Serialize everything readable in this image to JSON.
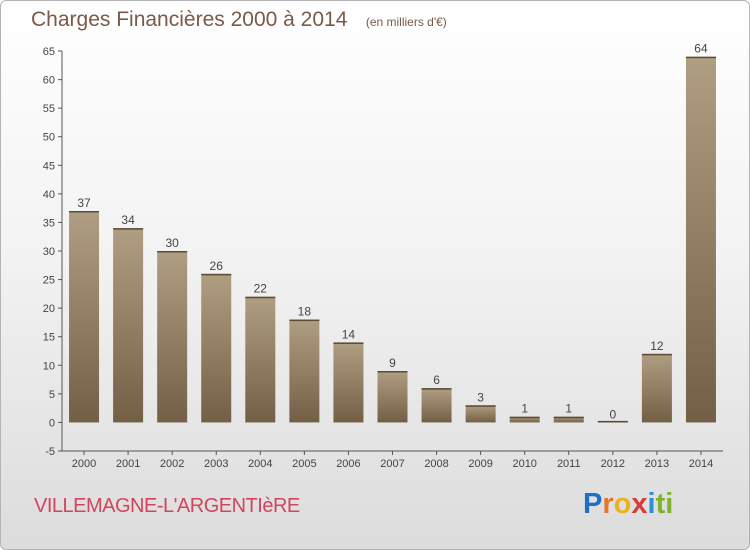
{
  "title": "Charges Financières 2000 à 2014",
  "subtitle": "(en milliers d'€)",
  "commune": "VILLEMAGNE-L'ARGENTIèRE",
  "logo": {
    "letters": [
      "P",
      "r",
      "o",
      "x",
      "i",
      "t",
      "i"
    ],
    "colors": [
      "#1f6fc6",
      "#e1782a",
      "#e8b31d",
      "#d93a3a",
      "#2a8fd6",
      "#7fb32e",
      "#7fb32e"
    ]
  },
  "colors": {
    "bar_top": "#b09e82",
    "bar_bottom": "#735f45",
    "axis": "#555555",
    "grid": "#d8d8d8",
    "label": "#444444"
  },
  "chart_data": {
    "type": "bar",
    "categories": [
      "2000",
      "2001",
      "2002",
      "2003",
      "2004",
      "2005",
      "2006",
      "2007",
      "2008",
      "2009",
      "2010",
      "2011",
      "2012",
      "2013",
      "2014"
    ],
    "values": [
      37,
      34,
      30,
      26,
      22,
      18,
      14,
      9,
      6,
      3,
      1,
      1,
      0,
      12,
      64
    ],
    "value_labels": [
      "37",
      "34",
      "30",
      "26",
      "22",
      "18",
      "14",
      "9",
      "6",
      "3",
      "1",
      "1",
      "0",
      "12",
      "64"
    ],
    "yticks": [
      "-5",
      "0",
      "5",
      "10",
      "15",
      "20",
      "25",
      "30",
      "35",
      "40",
      "45",
      "50",
      "55",
      "60",
      "65"
    ],
    "ylim": [
      -5,
      65
    ],
    "grid": false,
    "xlabel": "",
    "ylabel": ""
  }
}
